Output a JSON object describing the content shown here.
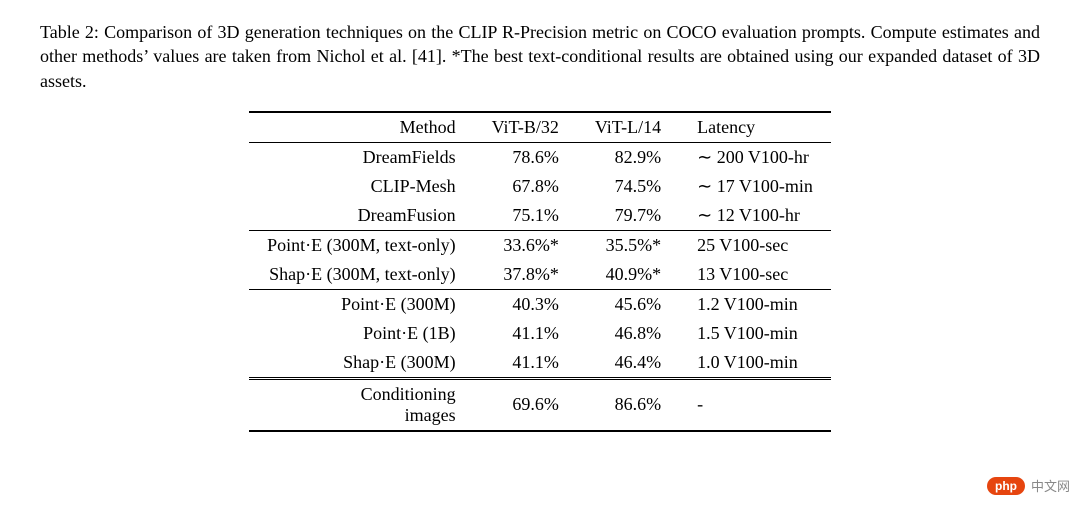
{
  "caption": "Table 2:  Comparison of 3D generation techniques on the CLIP R-Precision metric on COCO evaluation prompts. Compute estimates and other methods’ values are taken from Nichol et al. [41]. *The best text-conditional results are obtained using our expanded dataset of 3D assets.",
  "headers": {
    "method": "Method",
    "vitb32": "ViT-B/32",
    "vitl14": "ViT-L/14",
    "latency": "Latency"
  },
  "group1": [
    {
      "method": "DreamFields",
      "vitb32": "78.6%",
      "vitl14": "82.9%",
      "latency": "∼ 200 V100-hr"
    },
    {
      "method": "CLIP-Mesh",
      "vitb32": "67.8%",
      "vitl14": "74.5%",
      "latency": "∼ 17 V100-min"
    },
    {
      "method": "DreamFusion",
      "vitb32": "75.1%",
      "vitl14": "79.7%",
      "latency": "∼ 12 V100-hr"
    }
  ],
  "group2": [
    {
      "method": "Point·E (300M, text-only)",
      "vitb32": "33.6%*",
      "vitl14": "35.5%*",
      "latency": "25 V100-sec"
    },
    {
      "method": "Shap·E (300M, text-only)",
      "vitb32": "37.8%*",
      "vitl14": "40.9%*",
      "latency": "13 V100-sec"
    }
  ],
  "group3": [
    {
      "method": "Point·E (300M)",
      "vitb32": "40.3%",
      "vitl14": "45.6%",
      "latency": "1.2 V100-min"
    },
    {
      "method": "Point·E (1B)",
      "vitb32": "41.1%",
      "vitl14": "46.8%",
      "latency": "1.5 V100-min"
    },
    {
      "method": "Shap·E (300M)",
      "vitb32": "41.1%",
      "vitl14": "46.4%",
      "latency": "1.0 V100-min"
    }
  ],
  "group4": [
    {
      "method_line1": "Conditioning",
      "method_line2": "images",
      "vitb32": "69.6%",
      "vitl14": "86.6%",
      "latency": "-"
    }
  ],
  "watermark": {
    "badge": "php",
    "text": "中文网"
  }
}
